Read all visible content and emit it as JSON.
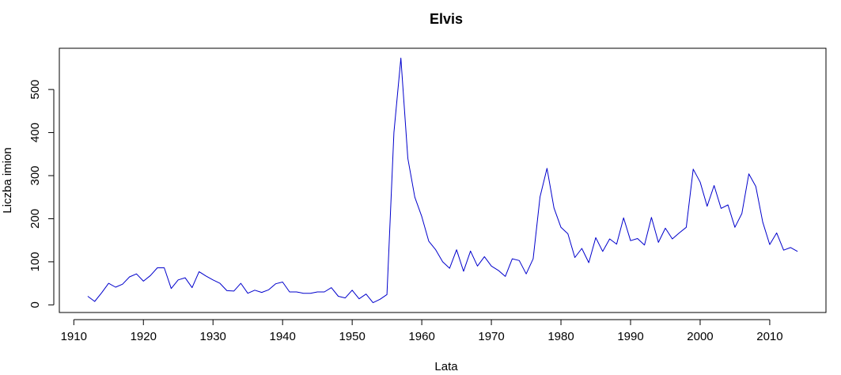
{
  "chart_data": {
    "type": "line",
    "title": "Elvis",
    "xlabel": "Lata",
    "ylabel": "Liczba imion",
    "xlim": [
      1912,
      2014
    ],
    "ylim": [
      5,
      573
    ],
    "xticks": [
      1910,
      1920,
      1930,
      1940,
      1950,
      1960,
      1970,
      1980,
      1990,
      2000,
      2010
    ],
    "yticks": [
      0,
      100,
      200,
      300,
      400,
      500
    ],
    "grid": false,
    "legend": "none",
    "series": [
      {
        "color": "#0000cc",
        "x": [
          1912,
          1913,
          1914,
          1915,
          1916,
          1917,
          1918,
          1919,
          1920,
          1921,
          1922,
          1923,
          1924,
          1925,
          1926,
          1927,
          1928,
          1929,
          1930,
          1931,
          1932,
          1933,
          1934,
          1935,
          1936,
          1937,
          1938,
          1939,
          1940,
          1941,
          1942,
          1943,
          1944,
          1945,
          1946,
          1947,
          1948,
          1949,
          1950,
          1951,
          1952,
          1953,
          1954,
          1955,
          1956,
          1957,
          1958,
          1959,
          1960,
          1961,
          1962,
          1963,
          1964,
          1965,
          1966,
          1967,
          1968,
          1969,
          1970,
          1971,
          1972,
          1973,
          1974,
          1975,
          1976,
          1977,
          1978,
          1979,
          1980,
          1981,
          1982,
          1983,
          1984,
          1985,
          1986,
          1987,
          1988,
          1989,
          1990,
          1991,
          1992,
          1993,
          1994,
          1995,
          1996,
          1997,
          1998,
          1999,
          2000,
          2001,
          2002,
          2003,
          2004,
          2005,
          2006,
          2007,
          2008,
          2009,
          2010,
          2011,
          2012,
          2013,
          2014
        ],
        "y": [
          20,
          8,
          28,
          50,
          41,
          48,
          65,
          72,
          55,
          68,
          86,
          86,
          38,
          58,
          63,
          40,
          77,
          67,
          58,
          50,
          33,
          32,
          50,
          27,
          34,
          29,
          35,
          49,
          53,
          30,
          30,
          27,
          27,
          30,
          30,
          40,
          20,
          16,
          34,
          14,
          25,
          5,
          13,
          24,
          400,
          573,
          340,
          250,
          205,
          148,
          128,
          100,
          85,
          128,
          78,
          125,
          90,
          112,
          90,
          80,
          66,
          107,
          103,
          72,
          107,
          251,
          317,
          225,
          180,
          165,
          110,
          131,
          98,
          156,
          124,
          153,
          141,
          202,
          149,
          154,
          139,
          203,
          145,
          178,
          153,
          167,
          180,
          315,
          285,
          229,
          277,
          224,
          232,
          180,
          212,
          304,
          275,
          192,
          140,
          167,
          127,
          133,
          124
        ]
      }
    ]
  }
}
